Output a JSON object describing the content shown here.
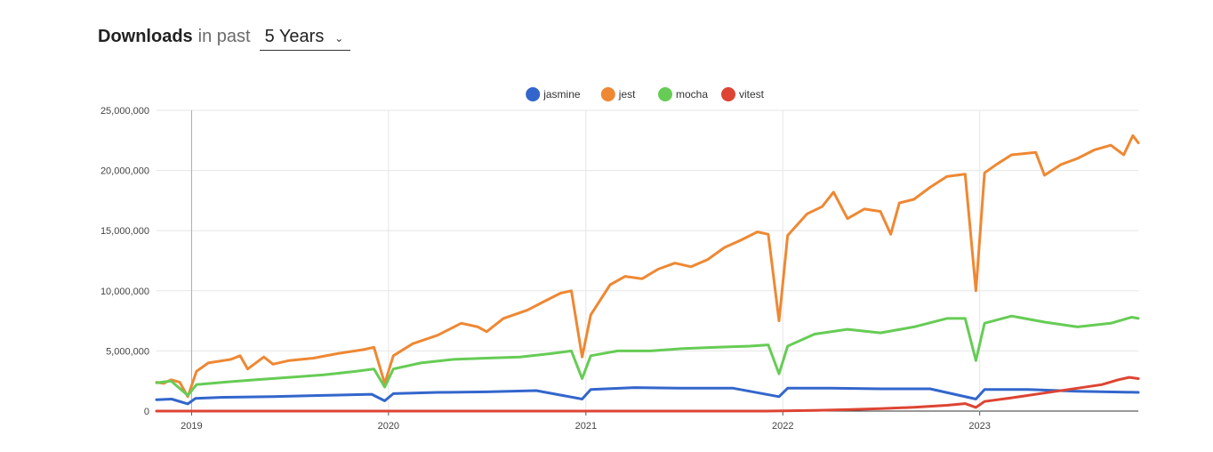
{
  "header": {
    "title_strong": "Downloads",
    "title_rest": "in past",
    "period_selected": "5 Years",
    "chevron_icon": "chevron-down-icon"
  },
  "chart_data": {
    "type": "line",
    "title": "",
    "xlabel": "",
    "ylabel": "",
    "ylim": [
      0,
      25000000
    ],
    "xlim": [
      "2018-10-28",
      "2023-10-22"
    ],
    "y_ticks": [
      0,
      5000000,
      10000000,
      15000000,
      20000000,
      25000000
    ],
    "y_tick_labels": [
      "0",
      "5,000,000",
      "10,000,000",
      "15,000,000",
      "20,000,000",
      "25,000,000"
    ],
    "x_ticks": [
      "2019-01-01",
      "2020-01-01",
      "2021-01-01",
      "2022-01-01",
      "2023-01-01"
    ],
    "x_tick_labels": [
      "2019",
      "2020",
      "2021",
      "2022",
      "2023"
    ],
    "grid": true,
    "legend": "top-center",
    "series": [
      {
        "name": "jasmine",
        "color": "#3366cc",
        "points": [
          [
            "2018-10-28",
            950000
          ],
          [
            "2018-11-25",
            1000000
          ],
          [
            "2018-12-25",
            600000
          ],
          [
            "2019-01-08",
            1050000
          ],
          [
            "2019-03-01",
            1150000
          ],
          [
            "2019-06-01",
            1200000
          ],
          [
            "2019-09-01",
            1300000
          ],
          [
            "2019-12-01",
            1400000
          ],
          [
            "2019-12-25",
            850000
          ],
          [
            "2020-01-10",
            1450000
          ],
          [
            "2020-04-01",
            1550000
          ],
          [
            "2020-07-01",
            1600000
          ],
          [
            "2020-10-01",
            1700000
          ],
          [
            "2020-12-25",
            1000000
          ],
          [
            "2021-01-10",
            1800000
          ],
          [
            "2021-04-01",
            1950000
          ],
          [
            "2021-07-01",
            1900000
          ],
          [
            "2021-10-01",
            1900000
          ],
          [
            "2021-12-25",
            1200000
          ],
          [
            "2022-01-10",
            1900000
          ],
          [
            "2022-04-01",
            1900000
          ],
          [
            "2022-07-01",
            1850000
          ],
          [
            "2022-10-01",
            1850000
          ],
          [
            "2022-12-25",
            1000000
          ],
          [
            "2023-01-10",
            1800000
          ],
          [
            "2023-04-01",
            1800000
          ],
          [
            "2023-07-01",
            1650000
          ],
          [
            "2023-10-22",
            1550000
          ]
        ]
      },
      {
        "name": "jest",
        "color": "#ee8833",
        "points": [
          [
            "2018-10-28",
            2400000
          ],
          [
            "2018-11-10",
            2300000
          ],
          [
            "2018-11-24",
            2600000
          ],
          [
            "2018-12-10",
            2400000
          ],
          [
            "2018-12-25",
            1200000
          ],
          [
            "2019-01-10",
            3300000
          ],
          [
            "2019-02-01",
            4000000
          ],
          [
            "2019-03-15",
            4300000
          ],
          [
            "2019-04-01",
            4600000
          ],
          [
            "2019-04-15",
            3500000
          ],
          [
            "2019-05-15",
            4500000
          ],
          [
            "2019-06-01",
            3900000
          ],
          [
            "2019-07-01",
            4200000
          ],
          [
            "2019-08-15",
            4400000
          ],
          [
            "2019-10-01",
            4800000
          ],
          [
            "2019-11-15",
            5100000
          ],
          [
            "2019-12-05",
            5300000
          ],
          [
            "2019-12-25",
            2300000
          ],
          [
            "2020-01-10",
            4600000
          ],
          [
            "2020-02-15",
            5600000
          ],
          [
            "2020-04-01",
            6300000
          ],
          [
            "2020-05-15",
            7300000
          ],
          [
            "2020-06-15",
            7000000
          ],
          [
            "2020-07-01",
            6600000
          ],
          [
            "2020-08-01",
            7700000
          ],
          [
            "2020-09-15",
            8400000
          ],
          [
            "2020-10-15",
            9100000
          ],
          [
            "2020-11-15",
            9800000
          ],
          [
            "2020-12-05",
            10000000
          ],
          [
            "2020-12-25",
            4500000
          ],
          [
            "2021-01-10",
            8000000
          ],
          [
            "2021-02-15",
            10500000
          ],
          [
            "2021-03-15",
            11200000
          ],
          [
            "2021-04-15",
            11000000
          ],
          [
            "2021-05-15",
            11800000
          ],
          [
            "2021-06-15",
            12300000
          ],
          [
            "2021-07-15",
            12000000
          ],
          [
            "2021-08-15",
            12600000
          ],
          [
            "2021-09-15",
            13600000
          ],
          [
            "2021-10-15",
            14200000
          ],
          [
            "2021-11-15",
            14900000
          ],
          [
            "2021-12-05",
            14700000
          ],
          [
            "2021-12-25",
            7500000
          ],
          [
            "2022-01-10",
            14600000
          ],
          [
            "2022-02-15",
            16400000
          ],
          [
            "2022-03-15",
            17000000
          ],
          [
            "2022-04-05",
            18200000
          ],
          [
            "2022-05-01",
            16000000
          ],
          [
            "2022-06-01",
            16800000
          ],
          [
            "2022-07-01",
            16600000
          ],
          [
            "2022-07-20",
            14700000
          ],
          [
            "2022-08-05",
            17300000
          ],
          [
            "2022-09-01",
            17600000
          ],
          [
            "2022-10-01",
            18600000
          ],
          [
            "2022-11-01",
            19500000
          ],
          [
            "2022-12-05",
            19700000
          ],
          [
            "2022-12-25",
            10000000
          ],
          [
            "2023-01-10",
            19800000
          ],
          [
            "2023-02-01",
            20500000
          ],
          [
            "2023-03-01",
            21300000
          ],
          [
            "2023-04-15",
            21500000
          ],
          [
            "2023-05-01",
            19600000
          ],
          [
            "2023-06-01",
            20500000
          ],
          [
            "2023-07-01",
            21000000
          ],
          [
            "2023-08-01",
            21700000
          ],
          [
            "2023-09-01",
            22100000
          ],
          [
            "2023-09-25",
            21300000
          ],
          [
            "2023-10-12",
            22900000
          ],
          [
            "2023-10-22",
            22300000
          ]
        ]
      },
      {
        "name": "mocha",
        "color": "#66cc55",
        "points": [
          [
            "2018-10-28",
            2350000
          ],
          [
            "2018-11-24",
            2500000
          ],
          [
            "2018-12-25",
            1300000
          ],
          [
            "2019-01-10",
            2200000
          ],
          [
            "2019-03-01",
            2400000
          ],
          [
            "2019-05-01",
            2600000
          ],
          [
            "2019-07-01",
            2800000
          ],
          [
            "2019-09-01",
            3000000
          ],
          [
            "2019-11-01",
            3300000
          ],
          [
            "2019-12-05",
            3500000
          ],
          [
            "2019-12-25",
            2000000
          ],
          [
            "2020-01-10",
            3500000
          ],
          [
            "2020-03-01",
            4000000
          ],
          [
            "2020-05-01",
            4300000
          ],
          [
            "2020-07-01",
            4400000
          ],
          [
            "2020-09-01",
            4500000
          ],
          [
            "2020-11-01",
            4800000
          ],
          [
            "2020-12-05",
            5000000
          ],
          [
            "2020-12-25",
            2700000
          ],
          [
            "2021-01-10",
            4600000
          ],
          [
            "2021-03-01",
            5000000
          ],
          [
            "2021-05-01",
            5000000
          ],
          [
            "2021-07-01",
            5200000
          ],
          [
            "2021-09-01",
            5300000
          ],
          [
            "2021-11-01",
            5400000
          ],
          [
            "2021-12-05",
            5500000
          ],
          [
            "2021-12-25",
            3100000
          ],
          [
            "2022-01-10",
            5400000
          ],
          [
            "2022-03-01",
            6400000
          ],
          [
            "2022-05-01",
            6800000
          ],
          [
            "2022-07-01",
            6500000
          ],
          [
            "2022-09-01",
            7000000
          ],
          [
            "2022-11-01",
            7700000
          ],
          [
            "2022-12-05",
            7700000
          ],
          [
            "2022-12-25",
            4200000
          ],
          [
            "2023-01-10",
            7300000
          ],
          [
            "2023-03-01",
            7900000
          ],
          [
            "2023-05-01",
            7400000
          ],
          [
            "2023-07-01",
            7000000
          ],
          [
            "2023-09-01",
            7300000
          ],
          [
            "2023-10-10",
            7800000
          ],
          [
            "2023-10-22",
            7700000
          ]
        ]
      },
      {
        "name": "vitest",
        "color": "#dd4433",
        "points": [
          [
            "2018-10-28",
            0
          ],
          [
            "2021-12-01",
            0
          ],
          [
            "2022-01-01",
            20000
          ],
          [
            "2022-03-01",
            60000
          ],
          [
            "2022-05-01",
            120000
          ],
          [
            "2022-07-01",
            200000
          ],
          [
            "2022-09-01",
            320000
          ],
          [
            "2022-11-01",
            480000
          ],
          [
            "2022-12-05",
            620000
          ],
          [
            "2022-12-25",
            300000
          ],
          [
            "2023-01-10",
            800000
          ],
          [
            "2023-03-01",
            1100000
          ],
          [
            "2023-05-01",
            1500000
          ],
          [
            "2023-07-01",
            1900000
          ],
          [
            "2023-08-15",
            2200000
          ],
          [
            "2023-09-15",
            2600000
          ],
          [
            "2023-10-05",
            2800000
          ],
          [
            "2023-10-22",
            2700000
          ]
        ]
      }
    ]
  }
}
